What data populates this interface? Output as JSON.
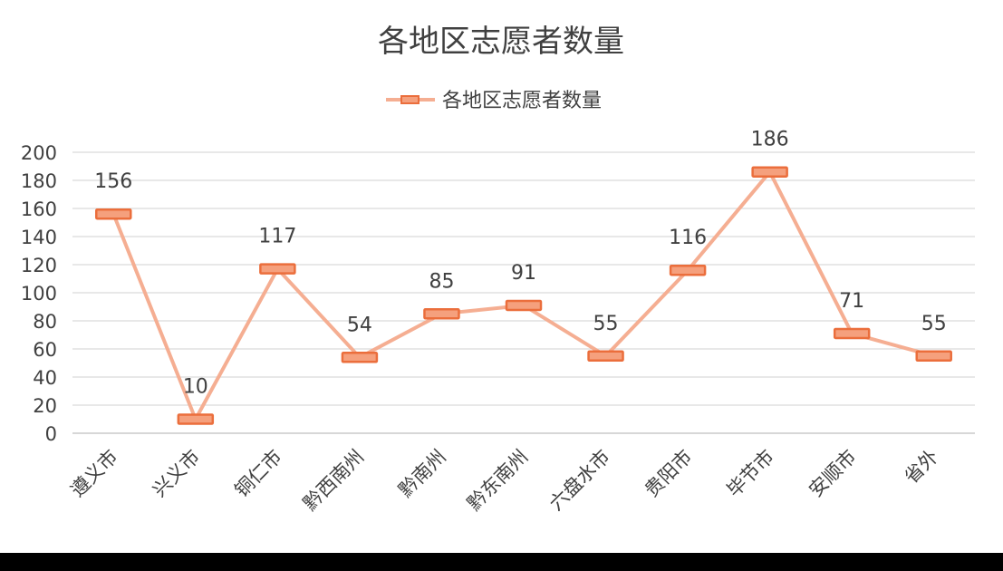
{
  "colors": {
    "line": "#F5AE92",
    "marker_fill": "#F5A07D",
    "marker_stroke": "#EB6E3C",
    "grid": "#D9D9D9",
    "text": "#404040"
  },
  "chart_data": {
    "type": "line",
    "title": "各地区志愿者数量",
    "legend_position": "top",
    "grid": true,
    "drop_lines": true,
    "ylim": [
      0,
      200
    ],
    "yticks": [
      0,
      20,
      40,
      60,
      80,
      100,
      120,
      140,
      160,
      180,
      200
    ],
    "categories": [
      "遵义市",
      "兴义市",
      "铜仁市",
      "黔西南州",
      "黔南州",
      "黔东南州",
      "六盘水市",
      "贵阳市",
      "毕节市",
      "安顺市",
      "省外"
    ],
    "series": [
      {
        "name": "各地区志愿者数量",
        "values": [
          156,
          10,
          117,
          54,
          85,
          91,
          55,
          116,
          186,
          71,
          55
        ]
      }
    ]
  }
}
